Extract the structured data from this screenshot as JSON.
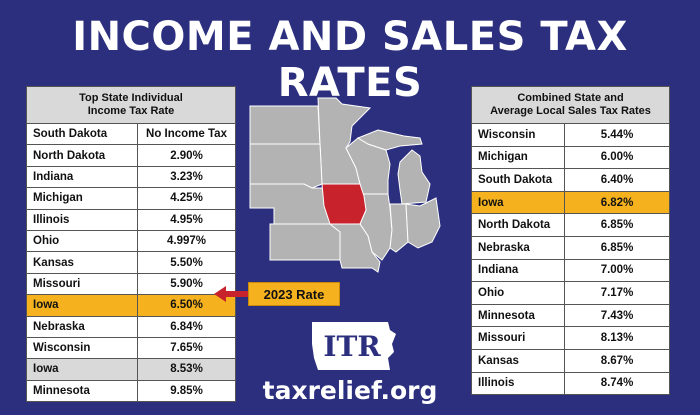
{
  "title": "INCOME AND SALES TAX RATES",
  "income_table": {
    "header_line1": "Top State Individual",
    "header_line2": "Income Tax Rate",
    "rows": [
      {
        "state": "South Dakota",
        "rate": "No Income Tax",
        "highlight": "none"
      },
      {
        "state": "North Dakota",
        "rate": "2.90%",
        "highlight": "none"
      },
      {
        "state": "Indiana",
        "rate": "3.23%",
        "highlight": "none"
      },
      {
        "state": "Michigan",
        "rate": "4.25%",
        "highlight": "none"
      },
      {
        "state": "Illinois",
        "rate": "4.95%",
        "highlight": "none"
      },
      {
        "state": "Ohio",
        "rate": "4.997%",
        "highlight": "none"
      },
      {
        "state": "Kansas",
        "rate": "5.50%",
        "highlight": "none"
      },
      {
        "state": "Missouri",
        "rate": "5.90%",
        "highlight": "none"
      },
      {
        "state": "Iowa",
        "rate": "6.50%",
        "highlight": "orange"
      },
      {
        "state": "Nebraska",
        "rate": "6.84%",
        "highlight": "none"
      },
      {
        "state": "Wisconsin",
        "rate": "7.65%",
        "highlight": "none"
      },
      {
        "state": "Iowa",
        "rate": "8.53%",
        "highlight": "gray"
      },
      {
        "state": "Minnesota",
        "rate": "9.85%",
        "highlight": "none"
      }
    ]
  },
  "sales_table": {
    "header_line1": "Combined State and",
    "header_line2": "Average Local Sales Tax Rates",
    "rows": [
      {
        "state": "Wisconsin",
        "rate": "5.44%",
        "highlight": "none"
      },
      {
        "state": "Michigan",
        "rate": "6.00%",
        "highlight": "none"
      },
      {
        "state": "South Dakota",
        "rate": "6.40%",
        "highlight": "none"
      },
      {
        "state": "Iowa",
        "rate": "6.82%",
        "highlight": "orange"
      },
      {
        "state": "North Dakota",
        "rate": "6.85%",
        "highlight": "none"
      },
      {
        "state": "Nebraska",
        "rate": "6.85%",
        "highlight": "none"
      },
      {
        "state": "Indiana",
        "rate": "7.00%",
        "highlight": "none"
      },
      {
        "state": "Ohio",
        "rate": "7.17%",
        "highlight": "none"
      },
      {
        "state": "Minnesota",
        "rate": "7.43%",
        "highlight": "none"
      },
      {
        "state": "Missouri",
        "rate": "8.13%",
        "highlight": "none"
      },
      {
        "state": "Kansas",
        "rate": "8.67%",
        "highlight": "none"
      },
      {
        "state": "Illinois",
        "rate": "8.74%",
        "highlight": "none"
      }
    ]
  },
  "callout": "2023 Rate",
  "logo_text": "ITR",
  "footer": "taxrelief.org",
  "colors": {
    "background": "#2b2f7e",
    "highlight_orange": "#f5b21e",
    "highlight_gray": "#d9d9d9",
    "iowa_red": "#c8232c",
    "map_gray": "#b3b3b3",
    "arrow_red": "#c8232c"
  },
  "icons": {
    "map": "midwest-map-icon",
    "arrow": "arrow-left-icon",
    "logo": "iowa-state-logo-icon"
  }
}
